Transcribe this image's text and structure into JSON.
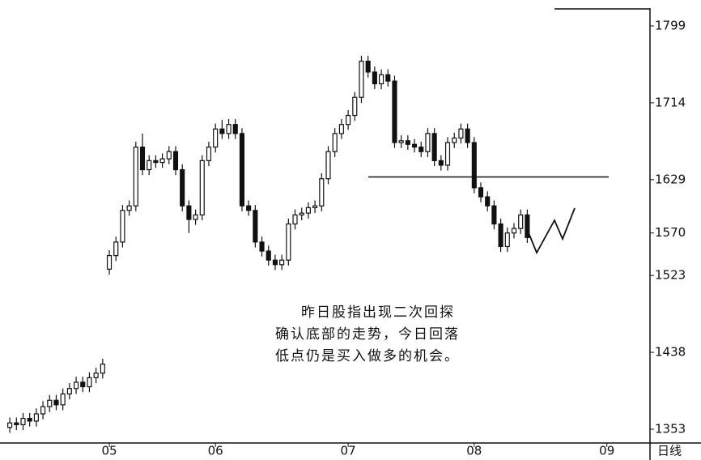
{
  "chart_data": {
    "type": "candlestick",
    "categories": [
      null,
      null,
      null,
      null,
      null,
      null,
      null,
      null,
      null,
      null,
      null,
      null,
      null,
      null,
      null,
      "05",
      null,
      null,
      null,
      null,
      null,
      null,
      null,
      null,
      null,
      null,
      null,
      null,
      null,
      null,
      null,
      "06",
      null,
      null,
      null,
      null,
      null,
      null,
      null,
      null,
      null,
      null,
      null,
      null,
      null,
      null,
      null,
      null,
      null,
      null,
      null,
      "07",
      null,
      null,
      null,
      null,
      null,
      null,
      null,
      null,
      null,
      null,
      null,
      null,
      null,
      null,
      null,
      null,
      null,
      null,
      "08",
      null,
      null,
      null,
      null,
      null,
      null,
      null,
      null,
      null,
      null,
      null,
      null,
      null,
      null,
      null,
      null,
      null,
      null,
      null,
      "09",
      null,
      null,
      null,
      null,
      null,
      null
    ],
    "open": [
      1355,
      1360,
      1358,
      1365,
      1362,
      1370,
      1378,
      1385,
      1380,
      1392,
      1398,
      1405,
      1400,
      1410,
      1415,
      1530,
      1545,
      1560,
      1595,
      1600,
      1665,
      1640,
      1650,
      1648,
      1652,
      1660,
      1640,
      1600,
      1585,
      1590,
      1650,
      1665,
      1685,
      1680,
      1690,
      1680,
      1600,
      1595,
      1560,
      1550,
      1540,
      1535,
      1540,
      1580,
      1590,
      1592,
      1598,
      1600,
      1630,
      1660,
      1680,
      1690,
      1700,
      1720,
      1760,
      1748,
      1735,
      1745,
      1738,
      1670,
      1672,
      1668,
      1665,
      1660,
      1680,
      1650,
      1645,
      1670,
      1675,
      1685,
      1670,
      1620,
      1610,
      1600,
      1580,
      1555,
      1570,
      1575,
      1590,
      null,
      null,
      null,
      null,
      null,
      null,
      null,
      null,
      null,
      null,
      null,
      null,
      null,
      null,
      null,
      null,
      null,
      null
    ],
    "high": [
      1366,
      1366,
      1371,
      1371,
      1376,
      1384,
      1391,
      1391,
      1398,
      1404,
      1411,
      1411,
      1416,
      1421,
      1431,
      1551,
      1566,
      1601,
      1606,
      1671,
      1680,
      1656,
      1656,
      1658,
      1666,
      1666,
      1646,
      1606,
      1596,
      1656,
      1671,
      1691,
      1695,
      1696,
      1696,
      1686,
      1606,
      1601,
      1566,
      1556,
      1546,
      1546,
      1586,
      1596,
      1598,
      1604,
      1606,
      1636,
      1666,
      1686,
      1696,
      1706,
      1726,
      1766,
      1766,
      1754,
      1751,
      1751,
      1744,
      1678,
      1678,
      1674,
      1671,
      1686,
      1686,
      1656,
      1676,
      1681,
      1691,
      1691,
      1676,
      1626,
      1616,
      1606,
      1586,
      1576,
      1581,
      1596,
      1596,
      null,
      null,
      null,
      null,
      null,
      null,
      null,
      null,
      null,
      null,
      null,
      null,
      null,
      null,
      null,
      null,
      null,
      null
    ],
    "low": [
      1349,
      1352,
      1352,
      1356,
      1356,
      1364,
      1372,
      1374,
      1374,
      1386,
      1392,
      1394,
      1394,
      1404,
      1409,
      1524,
      1539,
      1554,
      1589,
      1594,
      1634,
      1634,
      1642,
      1642,
      1646,
      1634,
      1594,
      1570,
      1579,
      1584,
      1644,
      1659,
      1674,
      1674,
      1674,
      1594,
      1589,
      1554,
      1544,
      1534,
      1529,
      1529,
      1534,
      1574,
      1584,
      1586,
      1592,
      1594,
      1624,
      1654,
      1674,
      1684,
      1694,
      1714,
      1742,
      1729,
      1729,
      1732,
      1664,
      1664,
      1662,
      1659,
      1654,
      1654,
      1644,
      1639,
      1639,
      1664,
      1669,
      1664,
      1614,
      1604,
      1594,
      1574,
      1549,
      1549,
      1564,
      1569,
      1559,
      null,
      null,
      null,
      null,
      null,
      null,
      null,
      null,
      null,
      null,
      null,
      null,
      null,
      null,
      null,
      null,
      null,
      null
    ],
    "close": [
      1360,
      1358,
      1365,
      1362,
      1370,
      1378,
      1385,
      1380,
      1392,
      1398,
      1405,
      1400,
      1410,
      1415,
      1425,
      1545,
      1560,
      1595,
      1600,
      1665,
      1640,
      1650,
      1648,
      1652,
      1660,
      1640,
      1600,
      1585,
      1590,
      1650,
      1665,
      1685,
      1680,
      1690,
      1680,
      1600,
      1595,
      1560,
      1550,
      1540,
      1535,
      1540,
      1580,
      1590,
      1592,
      1598,
      1600,
      1630,
      1660,
      1680,
      1690,
      1700,
      1720,
      1760,
      1748,
      1735,
      1745,
      1738,
      1670,
      1672,
      1668,
      1665,
      1660,
      1680,
      1650,
      1645,
      1670,
      1675,
      1685,
      1670,
      1620,
      1610,
      1600,
      1580,
      1555,
      1570,
      1575,
      1590,
      1565,
      null,
      null,
      null,
      null,
      null,
      null,
      null,
      null,
      null,
      null,
      null,
      null,
      null,
      null,
      null,
      null,
      null,
      null
    ],
    "ylim": [
      1353,
      1799
    ],
    "yticks": [
      1353,
      1438,
      1523,
      1570,
      1629,
      1714,
      1799
    ],
    "hline": 1632,
    "period_label": "日线",
    "annotation": [
      "昨日股指出现二次回探",
      "确认底部的走势，今日回落",
      "低点仍是买入做多的机会。"
    ],
    "color": "#111111"
  }
}
